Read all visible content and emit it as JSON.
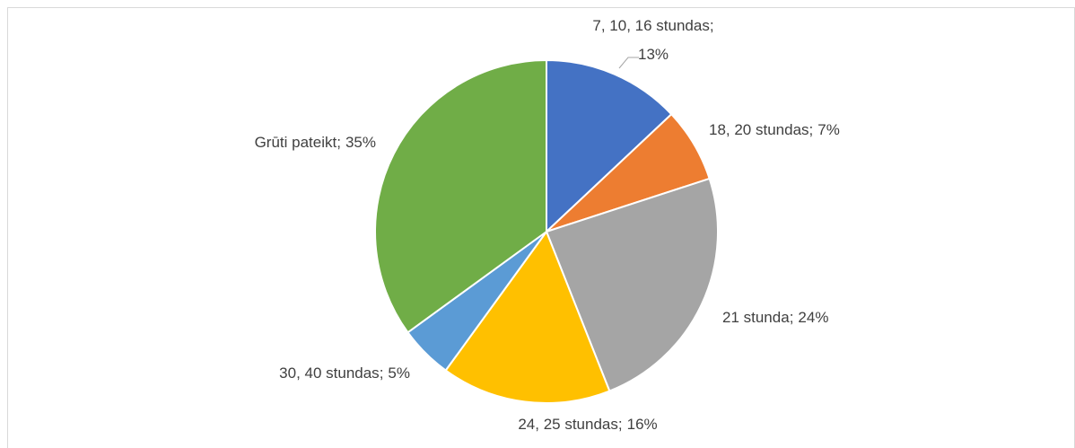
{
  "chart_data": {
    "type": "pie",
    "categories": [
      "7, 10, 16 stundas",
      "18, 20 stundas",
      "21 stunda",
      "24, 25 stundas",
      "30, 40 stundas",
      "Grūti pateikt"
    ],
    "values": [
      13,
      7,
      24,
      16,
      5,
      35
    ],
    "value_labels": [
      "13%",
      "7%",
      "24%",
      "16%",
      "5%",
      "35%"
    ],
    "label_separator": ";",
    "colors": [
      "#4472c4",
      "#ed7d31",
      "#a5a5a5",
      "#ffc000",
      "#5b9bd5",
      "#70ad47"
    ]
  }
}
